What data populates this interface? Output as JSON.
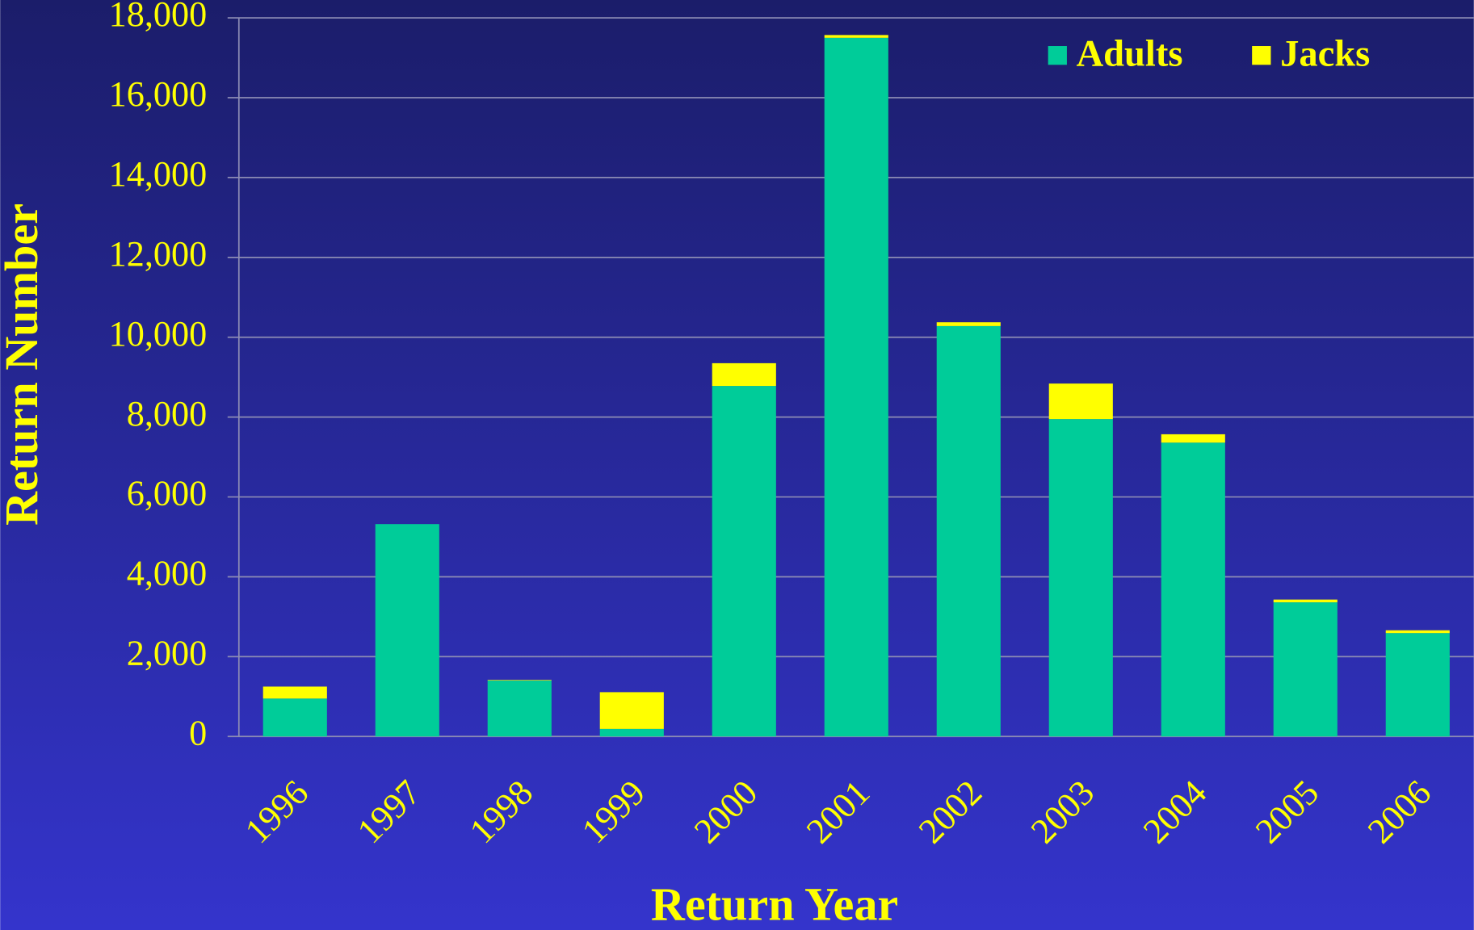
{
  "chart_data": {
    "type": "bar",
    "stacked": true,
    "x_label": "Return Year",
    "y_label": "Return Number",
    "categories": [
      "1996",
      "1997",
      "1998",
      "1999",
      "2000",
      "2001",
      "2002",
      "2003",
      "2004",
      "2005",
      "2006"
    ],
    "series": [
      {
        "name": "Adults",
        "color": "#00cc99",
        "values": [
          950,
          5320,
          1400,
          190,
          8780,
          17500,
          10280,
          7950,
          7360,
          3360,
          2590
        ]
      },
      {
        "name": "Jacks",
        "color": "#ffff00",
        "values": [
          300,
          0,
          15,
          920,
          570,
          70,
          95,
          890,
          210,
          70,
          70
        ]
      }
    ],
    "ylim": [
      0,
      18000
    ],
    "yticks": [
      0,
      {
        "value": 2000,
        "label": "2,000"
      },
      {
        "value": 4000,
        "label": "4,000"
      },
      {
        "value": 6000,
        "label": "6,000"
      },
      {
        "value": 8000,
        "label": "8,000"
      },
      {
        "value": 10000,
        "label": "10,000"
      },
      {
        "value": 12000,
        "label": "12,000"
      },
      {
        "value": 14000,
        "label": "14,000"
      },
      {
        "value": 16000,
        "label": "16,000"
      },
      {
        "value": 18000,
        "label": "18,000"
      }
    ],
    "grid": true,
    "legend": "top-right"
  }
}
